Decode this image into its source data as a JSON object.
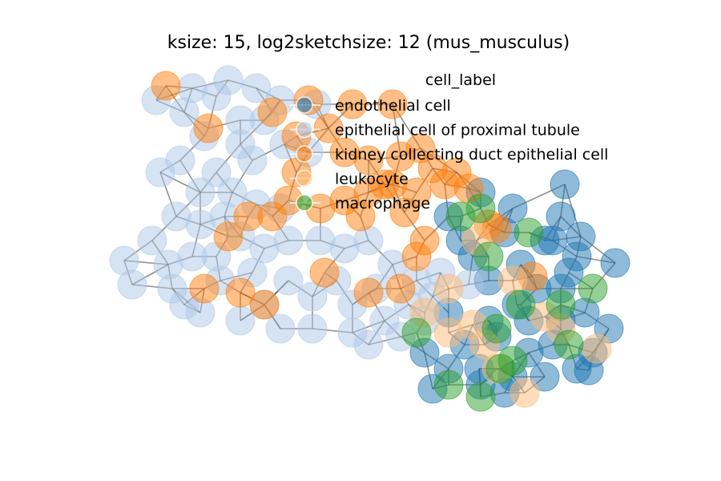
{
  "chart_data": {
    "type": "scatter",
    "subtype": "network-graph",
    "title": "ksize: 15, log2sketchsize: 12 (mus_musculus)",
    "xlabel": "",
    "ylabel": "",
    "axes_visible": false,
    "grid": false,
    "legend_title": "cell_label",
    "legend_position": "top-right",
    "edge_color": "#333333",
    "series": [
      {
        "name": "endothelial cell",
        "color": "#1f77b4",
        "points": [
          [
            600,
            240
          ],
          [
            640,
            260
          ],
          [
            680,
            300
          ],
          [
            720,
            320
          ],
          [
            650,
            330
          ],
          [
            610,
            350
          ],
          [
            700,
            360
          ],
          [
            730,
            390
          ],
          [
            660,
            400
          ],
          [
            620,
            420
          ],
          [
            690,
            430
          ],
          [
            740,
            440
          ],
          [
            580,
            430
          ],
          [
            560,
            460
          ],
          [
            600,
            480
          ],
          [
            640,
            470
          ],
          [
            680,
            470
          ],
          [
            720,
            460
          ],
          [
            530,
            440
          ],
          [
            560,
            390
          ],
          [
            590,
            320
          ],
          [
            630,
            290
          ],
          [
            700,
            270
          ],
          [
            705,
            230
          ],
          [
            768,
            328
          ],
          [
            735,
            462
          ],
          [
            540,
            485
          ],
          [
            630,
            490
          ],
          [
            760,
            410
          ],
          [
            710,
            340
          ],
          [
            670,
            360
          ],
          [
            645,
            380
          ],
          [
            610,
            400
          ],
          [
            575,
            300
          ],
          [
            560,
            270
          ],
          [
            690,
            300
          ],
          [
            725,
            295
          ],
          [
            598,
            460
          ],
          [
            660,
            440
          ],
          [
            700,
            400
          ]
        ]
      },
      {
        "name": "epithelial cell of proximal tubule",
        "color": "#aec7e8",
        "points": [
          [
            195,
            125
          ],
          [
            230,
            140
          ],
          [
            285,
            100
          ],
          [
            320,
            110
          ],
          [
            350,
            125
          ],
          [
            300,
            150
          ],
          [
            255,
            170
          ],
          [
            225,
            200
          ],
          [
            200,
            215
          ],
          [
            270,
            215
          ],
          [
            315,
            200
          ],
          [
            355,
            180
          ],
          [
            385,
            190
          ],
          [
            250,
            240
          ],
          [
            220,
            270
          ],
          [
            190,
            300
          ],
          [
            155,
            325
          ],
          [
            165,
            355
          ],
          [
            215,
            360
          ],
          [
            250,
            390
          ],
          [
            230,
            380
          ],
          [
            275,
            350
          ],
          [
            315,
            340
          ],
          [
            330,
            310
          ],
          [
            300,
            295
          ],
          [
            270,
            320
          ],
          [
            360,
            300
          ],
          [
            400,
            300
          ],
          [
            430,
            310
          ],
          [
            460,
            300
          ],
          [
            490,
            330
          ],
          [
            470,
            360
          ],
          [
            440,
            380
          ],
          [
            420,
            350
          ],
          [
            390,
            370
          ],
          [
            360,
            350
          ],
          [
            330,
            380
          ],
          [
            300,
            400
          ],
          [
            350,
            410
          ],
          [
            390,
            410
          ],
          [
            440,
            415
          ],
          [
            480,
            400
          ],
          [
            500,
            420
          ],
          [
            530,
            400
          ],
          [
            520,
            350
          ],
          [
            550,
            340
          ],
          [
            585,
            355
          ],
          [
            240,
            320
          ],
          [
            210,
            330
          ],
          [
            280,
            270
          ],
          [
            250,
            280
          ],
          [
            330,
            150
          ],
          [
            270,
            120
          ],
          [
            240,
            110
          ],
          [
            300,
            180
          ],
          [
            395,
            130
          ],
          [
            540,
            370
          ],
          [
            460,
            430
          ],
          [
            510,
            380
          ],
          [
            320,
            255
          ],
          [
            290,
            240
          ],
          [
            350,
            260
          ]
        ]
      },
      {
        "name": "kidney collecting duct epithelial cell",
        "color": "#ff7f0e",
        "points": [
          [
            207,
            107
          ],
          [
            260,
            160
          ],
          [
            340,
            140
          ],
          [
            385,
            125
          ],
          [
            440,
            130
          ],
          [
            490,
            130
          ],
          [
            370,
            170
          ],
          [
            410,
            160
          ],
          [
            430,
            190
          ],
          [
            460,
            200
          ],
          [
            500,
            195
          ],
          [
            525,
            185
          ],
          [
            540,
            210
          ],
          [
            570,
            215
          ],
          [
            585,
            235
          ],
          [
            520,
            240
          ],
          [
            490,
            230
          ],
          [
            460,
            240
          ],
          [
            430,
            250
          ],
          [
            400,
            260
          ],
          [
            370,
            215
          ],
          [
            360,
            250
          ],
          [
            340,
            270
          ],
          [
            310,
            270
          ],
          [
            285,
            295
          ],
          [
            255,
            360
          ],
          [
            300,
            365
          ],
          [
            330,
            380
          ],
          [
            405,
            340
          ],
          [
            460,
            365
          ],
          [
            500,
            360
          ],
          [
            520,
            320
          ],
          [
            610,
            280
          ],
          [
            620,
            285
          ],
          [
            665,
            345
          ],
          [
            480,
            230
          ],
          [
            450,
            270
          ],
          [
            530,
            300
          ],
          [
            555,
            230
          ],
          [
            505,
            265
          ]
        ]
      },
      {
        "name": "leukocyte",
        "color": "#ffbb78",
        "points": [
          [
            595,
            300
          ],
          [
            560,
            360
          ],
          [
            530,
            390
          ],
          [
            605,
            430
          ],
          [
            655,
            490
          ],
          [
            700,
            410
          ],
          [
            745,
            435
          ],
          [
            590,
            405
          ],
          [
            560,
            415
          ],
          [
            640,
            350
          ],
          [
            680,
            395
          ],
          [
            620,
            460
          ]
        ]
      },
      {
        "name": "macrophage",
        "color": "#2ca02c",
        "points": [
          [
            600,
            260
          ],
          [
            575,
            270
          ],
          [
            610,
            320
          ],
          [
            650,
            380
          ],
          [
            620,
            410
          ],
          [
            700,
            380
          ],
          [
            740,
            360
          ],
          [
            710,
            430
          ],
          [
            640,
            450
          ],
          [
            600,
            495
          ],
          [
            560,
            480
          ],
          [
            520,
            415
          ],
          [
            660,
            290
          ],
          [
            625,
            460
          ]
        ]
      }
    ]
  }
}
